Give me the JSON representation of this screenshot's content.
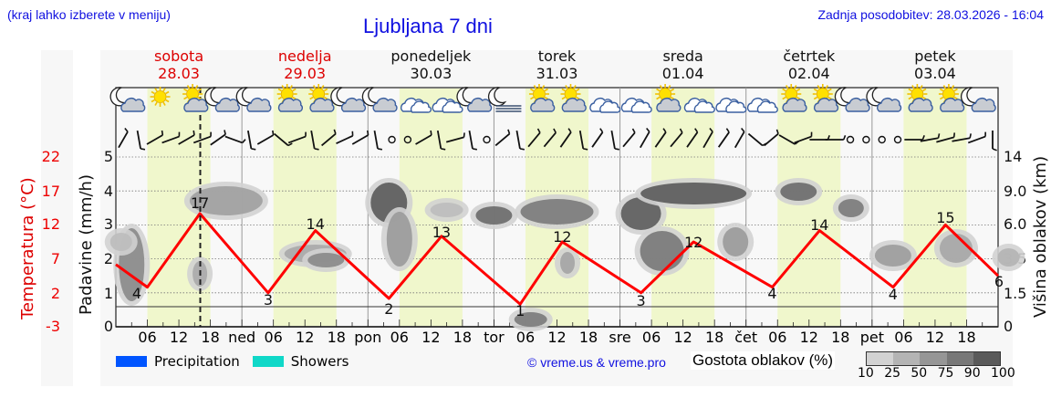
{
  "header": {
    "left_note": "(kraj lahko izberete v meniju)",
    "title": "Ljubljana 7 dni",
    "last_update": "Zadnja posodobitev: 28.03.2026 - 16:04"
  },
  "days": [
    {
      "name": "sobota",
      "date": "28.03",
      "weekend": true
    },
    {
      "name": "nedelja",
      "date": "29.03",
      "weekend": true
    },
    {
      "name": "ponedeljek",
      "date": "30.03",
      "weekend": false
    },
    {
      "name": "torek",
      "date": "31.03",
      "weekend": false
    },
    {
      "name": "sreda",
      "date": "01.04",
      "weekend": false
    },
    {
      "name": "četrtek",
      "date": "02.04",
      "weekend": false
    },
    {
      "name": "petek",
      "date": "03.04",
      "weekend": false
    }
  ],
  "axes": {
    "temp_label": "Temperatura (°C)",
    "temp_ticks": [
      "22",
      "17",
      "12",
      "7",
      "2",
      "-3"
    ],
    "precip_label": "Padavine (mm/h)",
    "precip_ticks": [
      "5",
      "4",
      "3",
      "2",
      "1",
      "0"
    ],
    "cloud_label": "Višina oblakov (km)",
    "cloud_ticks": [
      "14",
      "9.0",
      "6.0",
      "3.5",
      "1.5",
      "0"
    ],
    "x_ticks": [
      "06",
      "12",
      "18",
      "ned",
      "06",
      "12",
      "18",
      "pon",
      "06",
      "12",
      "18",
      "tor",
      "06",
      "12",
      "18",
      "sre",
      "06",
      "12",
      "18",
      "čet",
      "06",
      "12",
      "18",
      "pet",
      "06",
      "12",
      "18"
    ]
  },
  "legend": {
    "items": [
      {
        "label": "Precipitation",
        "color": "#0055ff"
      },
      {
        "label": "Showers",
        "color": "#10d8c8"
      }
    ],
    "credit": "© vreme.us & vreme.pro",
    "cloud_density_label": "Gostota oblakov (%)",
    "cloud_density_scale": [
      "10",
      "25",
      "50",
      "75",
      "90",
      "100"
    ],
    "cloud_density_colors": [
      "#d2d2d2",
      "#b4b4b4",
      "#969696",
      "#787878",
      "#5a5a5a"
    ]
  },
  "icons": [
    "moon-cloud",
    "sun",
    "sun-cloud",
    "moon-cloud",
    "moon-cloud",
    "sun-cloud",
    "sun-cloud",
    "moon-cloud",
    "moon-cloud",
    "cloud",
    "cloud",
    "moon-cloud",
    "moon-fog",
    "sun-cloud",
    "sun-cloud",
    "cloud",
    "cloud",
    "sun-cloud",
    "cloud",
    "cloud",
    "cloud",
    "sun-cloud",
    "sun-cloud",
    "moon-cloud",
    "moon-cloud",
    "sun-cloud",
    "sun-cloud",
    "moon-cloud"
  ],
  "chart_data": {
    "type": "line",
    "title": "Ljubljana 7 dni",
    "xlabel": "",
    "ylabel": "Temperatura (°C)",
    "ylim": [
      -3,
      27
    ],
    "x": [
      "Sat 00",
      "Sat 06",
      "Sat 16",
      "Sun 05",
      "Sun 14",
      "Mon 04",
      "Mon 14",
      "Tue 05",
      "Tue 13",
      "Wed 04",
      "Wed 14",
      "Thu 05",
      "Thu 14",
      "Fri 04",
      "Fri 14",
      "Fri 24"
    ],
    "series": [
      {
        "name": "Temperatura",
        "color": "#ff0000",
        "values": [
          8,
          4,
          17,
          3,
          14,
          2,
          13,
          1,
          12,
          3,
          12,
          4,
          14,
          4,
          15,
          6
        ]
      }
    ],
    "labeled_extremes": [
      {
        "day": "sobota",
        "min": 4,
        "max": 17
      },
      {
        "day": "nedelja",
        "min": 3,
        "max": 14
      },
      {
        "day": "ponedeljek",
        "min": 2,
        "max": 13
      },
      {
        "day": "torek",
        "min": 1,
        "max": 12
      },
      {
        "day": "sreda",
        "min": 3,
        "max": 12
      },
      {
        "day": "četrtek",
        "min": 4,
        "max": 14
      },
      {
        "day": "petek",
        "min": 4,
        "max": 15
      },
      {
        "day": "end",
        "value": 6
      }
    ],
    "secondary_axes": {
      "precip_mm_h": [
        0,
        5
      ],
      "cloud_height_km_ticks": [
        0,
        1.5,
        3.5,
        6.0,
        9.0,
        14
      ]
    },
    "current_time_marker": "28.03 16:04",
    "grid": true
  }
}
